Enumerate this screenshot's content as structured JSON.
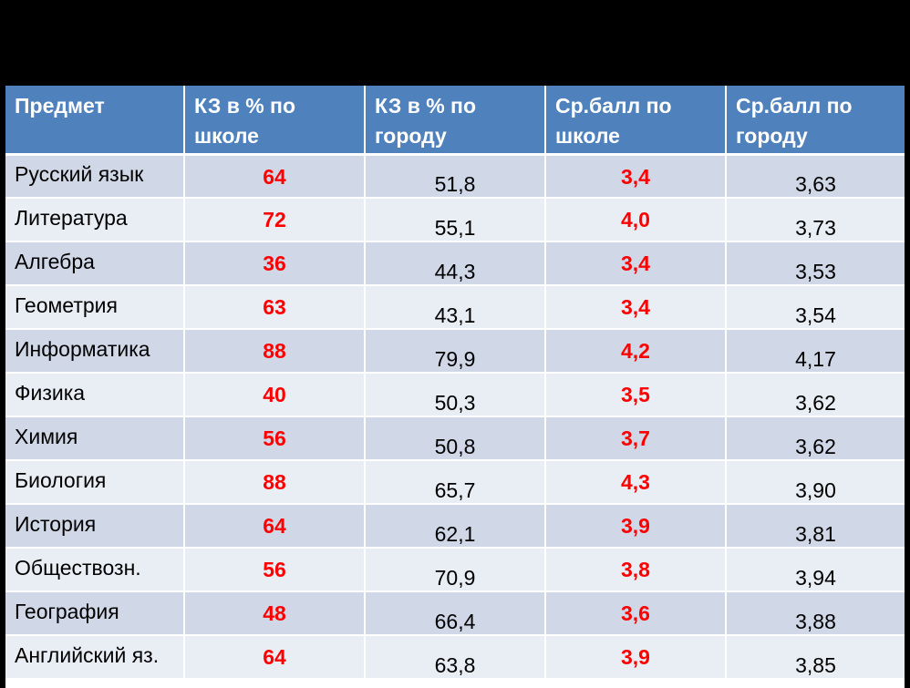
{
  "table": {
    "headers": [
      [
        "Предмет"
      ],
      [
        "КЗ в % по",
        "школе"
      ],
      [
        "КЗ в % по",
        "городу"
      ],
      [
        "Ср.балл по",
        "школе"
      ],
      [
        "Ср.балл по",
        "городу"
      ]
    ],
    "rows": [
      {
        "subject": "Русский язык",
        "kz_school": "64",
        "kz_city": "51,8",
        "avg_school": "3,4",
        "avg_city": "3,63"
      },
      {
        "subject": "Литература",
        "kz_school": "72",
        "kz_city": "55,1",
        "avg_school": "4,0",
        "avg_city": "3,73"
      },
      {
        "subject": "Алгебра",
        "kz_school": "36",
        "kz_city": "44,3",
        "avg_school": "3,4",
        "avg_city": "3,53"
      },
      {
        "subject": "Геометрия",
        "kz_school": "63",
        "kz_city": "43,1",
        "avg_school": "3,4",
        "avg_city": "3,54"
      },
      {
        "subject": "Информатика",
        "kz_school": "88",
        "kz_city": "79,9",
        "avg_school": "4,2",
        "avg_city": "4,17"
      },
      {
        "subject": "Физика",
        "kz_school": "40",
        "kz_city": "50,3",
        "avg_school": "3,5",
        "avg_city": "3,62"
      },
      {
        "subject": "Химия",
        "kz_school": "56",
        "kz_city": "50,8",
        "avg_school": "3,7",
        "avg_city": "3,62"
      },
      {
        "subject": "Биология",
        "kz_school": "88",
        "kz_city": "65,7",
        "avg_school": "4,3",
        "avg_city": "3,90"
      },
      {
        "subject": "История",
        "kz_school": "64",
        "kz_city": "62,1",
        "avg_school": "3,9",
        "avg_city": "3,81"
      },
      {
        "subject": "Обществозн.",
        "kz_school": "56",
        "kz_city": "70,9",
        "avg_school": "3,8",
        "avg_city": "3,94"
      },
      {
        "subject": "География",
        "kz_school": "48",
        "kz_city": "66,4",
        "avg_school": "3,6",
        "avg_city": "3,88"
      },
      {
        "subject": "Английский яз.",
        "kz_school": "64",
        "kz_city": "63,8",
        "avg_school": "3,9",
        "avg_city": "3,85"
      }
    ]
  },
  "colors": {
    "background": "#000000",
    "header": "#4f81bd",
    "row_odd": "#d0d8e8",
    "row_even": "#e9edf4",
    "school_value": "#ff0000"
  }
}
